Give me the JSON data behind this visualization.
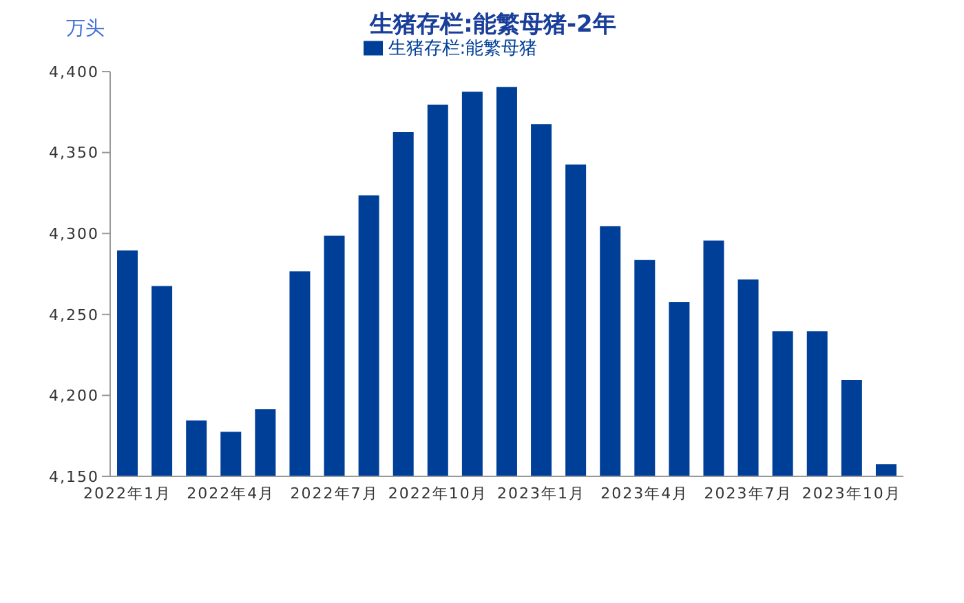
{
  "chart_data": {
    "type": "bar",
    "title": "生猪存栏:能繁母猪-2年",
    "ylabel": "万头",
    "categories": [
      "2022年1月",
      null,
      null,
      "2022年4月",
      null,
      null,
      "2022年7月",
      null,
      null,
      "2022年10月",
      null,
      null,
      "2023年1月",
      null,
      null,
      "2023年4月",
      null,
      null,
      "2023年7月",
      null,
      null,
      "2023年10月",
      null
    ],
    "series": [
      {
        "name": "生猪存栏:能繁母猪",
        "color": "#003f98",
        "values": [
          4290,
          4268,
          4185,
          4178,
          4192,
          4277,
          4299,
          4324,
          4363,
          4380,
          4388,
          4391,
          4368,
          4343,
          4305,
          4284,
          4258,
          4296,
          4272,
          4240,
          4240,
          4210,
          4158
        ]
      }
    ],
    "ylim": [
      4150,
      4400
    ],
    "yticks": [
      {
        "value": 4150,
        "label": "4,150"
      },
      {
        "value": 4200,
        "label": "4,200"
      },
      {
        "value": 4250,
        "label": "4,250"
      },
      {
        "value": 4300,
        "label": "4,300"
      },
      {
        "value": 4350,
        "label": "4,350"
      },
      {
        "value": 4400,
        "label": "4,400"
      }
    ],
    "grid": false,
    "legend": "top"
  }
}
